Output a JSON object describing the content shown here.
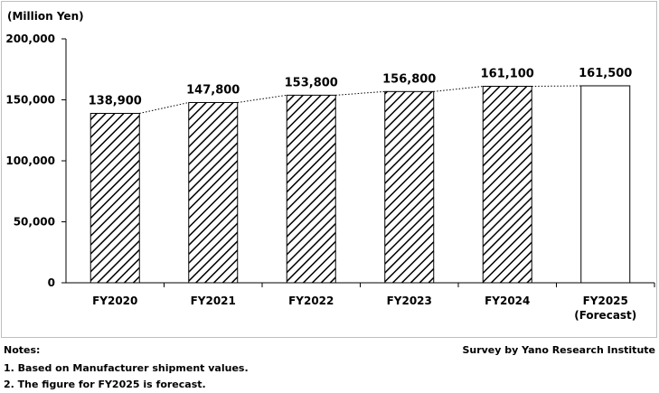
{
  "chart_data": {
    "type": "bar",
    "unit_label": "(Million Yen)",
    "categories": [
      [
        "FY2020"
      ],
      [
        "FY2021"
      ],
      [
        "FY2022"
      ],
      [
        "FY2023"
      ],
      [
        "FY2024"
      ],
      [
        "FY2025",
        "(Forecast)"
      ]
    ],
    "values": [
      138900,
      147800,
      153800,
      156800,
      161100,
      161500
    ],
    "value_labels": [
      "138,900",
      "147,800",
      "153,800",
      "156,800",
      "161,100",
      "161,500"
    ],
    "forecast": [
      false,
      false,
      false,
      false,
      false,
      true
    ],
    "yticks": [
      "0",
      "50,000",
      "100,000",
      "150,000",
      "200,000"
    ],
    "ytick_values": [
      0,
      50000,
      100000,
      150000,
      200000
    ],
    "ylim": [
      0,
      200000
    ],
    "connector_lines": "dotted",
    "bar_fill": "diagonal-hatch",
    "colors": {
      "bar_stroke": "#000000",
      "hatch": "#000000",
      "connector": "#000000",
      "frame": "#bfbfbf"
    }
  },
  "footer": {
    "notes_title": "Notes:",
    "note_1": "1. Based on Manufacturer shipment values.",
    "note_2": "2. The figure for FY2025 is forecast.",
    "source": "Survey by Yano Research Institute"
  }
}
